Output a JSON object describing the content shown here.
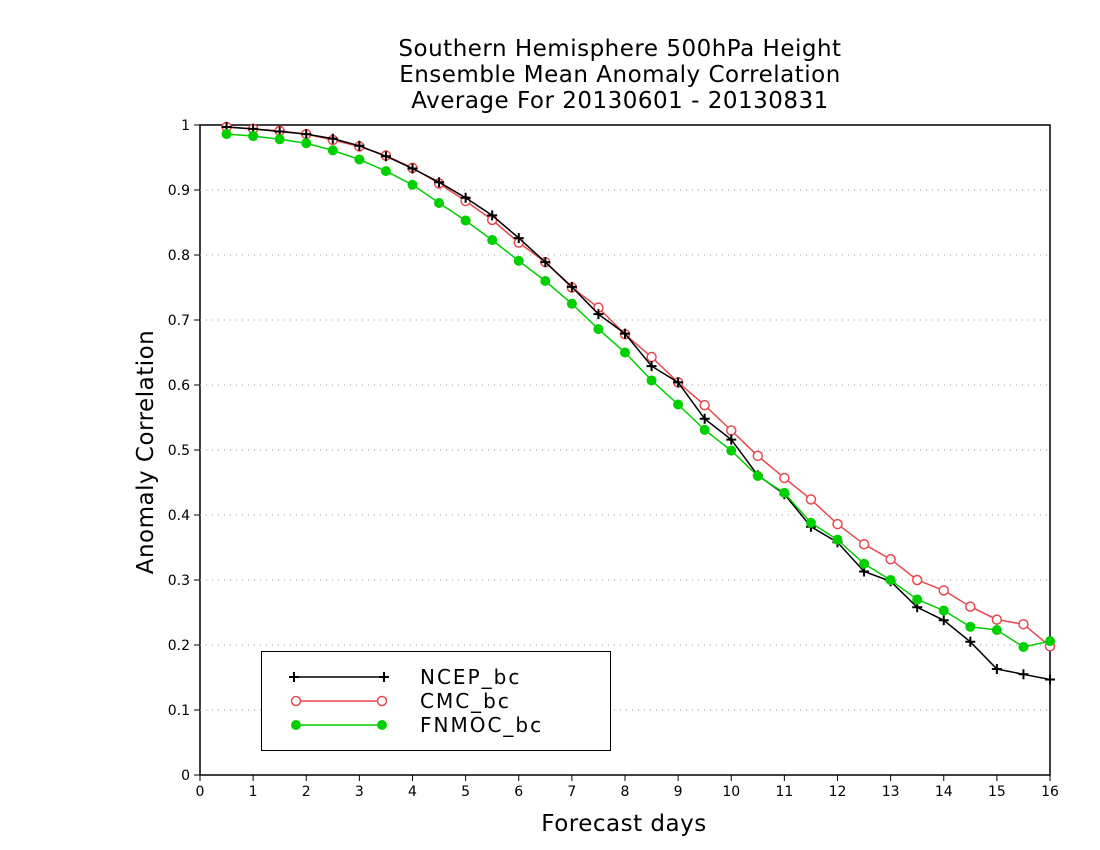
{
  "chart_data": {
    "type": "line",
    "title": [
      "Southern Hemisphere 500hPa Height",
      "Ensemble Mean Anomaly Correlation",
      "Average For 20130601 - 20130831"
    ],
    "xlabel": "Forecast days",
    "ylabel": "Anomaly Correlation",
    "xlim": [
      0,
      16
    ],
    "ylim": [
      0,
      1
    ],
    "xticks": [
      "0",
      "1",
      "2",
      "3",
      "4",
      "5",
      "6",
      "7",
      "8",
      "9",
      "10",
      "11",
      "12",
      "13",
      "14",
      "15",
      "16"
    ],
    "yticks": [
      "0",
      "0.1",
      "0.2",
      "0.3",
      "0.4",
      "0.5",
      "0.6",
      "0.7",
      "0.8",
      "0.9",
      "1"
    ],
    "grid": "horizontal dotted",
    "legend_position": "lower-left",
    "x": [
      0.5,
      1,
      1.5,
      2,
      2.5,
      3,
      3.5,
      4,
      4.5,
      5,
      5.5,
      6,
      6.5,
      7,
      7.5,
      8,
      8.5,
      9,
      9.5,
      10,
      10.5,
      11,
      11.5,
      12,
      12.5,
      13,
      13.5,
      14,
      14.5,
      15,
      15.5,
      16
    ],
    "series": [
      {
        "name": "NCEP_bc",
        "color": "#000000",
        "marker": "plus",
        "values": [
          0.997,
          0.994,
          0.99,
          0.986,
          0.979,
          0.968,
          0.952,
          0.933,
          0.912,
          0.888,
          0.861,
          0.826,
          0.789,
          0.751,
          0.709,
          0.679,
          0.629,
          0.604,
          0.548,
          0.516,
          0.461,
          0.432,
          0.382,
          0.358,
          0.313,
          0.298,
          0.258,
          0.238,
          0.205,
          0.163,
          0.155,
          0.147
        ]
      },
      {
        "name": "CMC_bc",
        "color": "#e8484e",
        "marker": "open-circle",
        "values": [
          0.997,
          0.994,
          0.991,
          0.986,
          0.977,
          0.967,
          0.953,
          0.934,
          0.91,
          0.883,
          0.854,
          0.819,
          0.789,
          0.75,
          0.719,
          0.678,
          0.643,
          0.604,
          0.569,
          0.53,
          0.491,
          0.457,
          0.424,
          0.386,
          0.355,
          0.332,
          0.3,
          0.284,
          0.259,
          0.239,
          0.232,
          0.198
        ]
      },
      {
        "name": "FNMOC_bc",
        "color": "#00d000",
        "marker": "filled-circle",
        "values": [
          0.986,
          0.983,
          0.978,
          0.972,
          0.961,
          0.947,
          0.929,
          0.908,
          0.88,
          0.853,
          0.823,
          0.791,
          0.76,
          0.725,
          0.686,
          0.65,
          0.607,
          0.57,
          0.531,
          0.499,
          0.46,
          0.434,
          0.388,
          0.362,
          0.325,
          0.3,
          0.27,
          0.253,
          0.228,
          0.223,
          0.197,
          0.206
        ]
      }
    ]
  }
}
